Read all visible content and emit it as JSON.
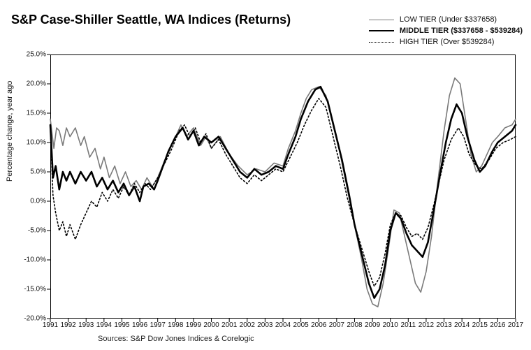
{
  "chart": {
    "type": "line",
    "title": "S&P Case-Shiller Seattle, WA Indices (Returns)",
    "title_fontsize": 18,
    "title_fontweight": "bold",
    "ylabel": "Percentage change, year ago",
    "label_fontsize": 11,
    "tick_fontsize": 10,
    "background_color": "#ffffff",
    "axis_color": "#000000",
    "xlim": [
      1991,
      2017
    ],
    "ylim": [
      -20,
      25
    ],
    "ytick_step": 5,
    "ytick_suffix": ".0%",
    "yticks": [
      "25.0%",
      "20.0%",
      "15.0%",
      "10.0%",
      "5.0%",
      "0.0%",
      "-5.0%",
      "-10.0%",
      "-15.0%",
      "-20.0%"
    ],
    "ytick_values": [
      25,
      20,
      15,
      10,
      5,
      0,
      -5,
      -10,
      -15,
      -20
    ],
    "xticks": [
      1991,
      1992,
      1993,
      1994,
      1995,
      1996,
      1997,
      1998,
      1999,
      2000,
      2001,
      2002,
      2003,
      2004,
      2005,
      2006,
      2007,
      2008,
      2009,
      2010,
      2011,
      2012,
      2013,
      2014,
      2015,
      2016,
      2017
    ],
    "legend": {
      "position": "top-right",
      "items": [
        {
          "label": "LOW TIER (Under $337658)",
          "color": "#7a7a7a",
          "width": 1.6,
          "dash": ""
        },
        {
          "label": "MIDDLE TIER ($337658 - $539284)",
          "color": "#000000",
          "width": 2.6,
          "dash": ""
        },
        {
          "label": "HIGH TIER (Over $539284)",
          "color": "#000000",
          "width": 1.6,
          "dash": "2,3"
        }
      ]
    },
    "series": [
      {
        "name": "LOW TIER",
        "color": "#7a7a7a",
        "width": 1.6,
        "dash": "",
        "points": [
          [
            1991.0,
            14.0
          ],
          [
            1991.2,
            9.0
          ],
          [
            1991.35,
            12.5
          ],
          [
            1991.5,
            12.0
          ],
          [
            1991.7,
            9.5
          ],
          [
            1991.9,
            12.5
          ],
          [
            1992.1,
            11.0
          ],
          [
            1992.4,
            12.5
          ],
          [
            1992.7,
            9.5
          ],
          [
            1992.9,
            11.0
          ],
          [
            1993.2,
            7.5
          ],
          [
            1993.5,
            9.0
          ],
          [
            1993.8,
            5.5
          ],
          [
            1994.0,
            7.5
          ],
          [
            1994.3,
            4.0
          ],
          [
            1994.6,
            6.0
          ],
          [
            1994.9,
            3.0
          ],
          [
            1995.2,
            5.0
          ],
          [
            1995.5,
            2.5
          ],
          [
            1995.8,
            3.5
          ],
          [
            1996.1,
            2.0
          ],
          [
            1996.4,
            4.0
          ],
          [
            1996.7,
            2.5
          ],
          [
            1997.0,
            4.0
          ],
          [
            1997.4,
            7.0
          ],
          [
            1997.7,
            9.0
          ],
          [
            1998.0,
            11.0
          ],
          [
            1998.3,
            13.0
          ],
          [
            1998.6,
            11.0
          ],
          [
            1999.0,
            12.5
          ],
          [
            1999.4,
            9.5
          ],
          [
            1999.7,
            11.0
          ],
          [
            2000.0,
            9.0
          ],
          [
            2000.5,
            11.0
          ],
          [
            2001.0,
            8.0
          ],
          [
            2001.5,
            6.0
          ],
          [
            2002.0,
            4.5
          ],
          [
            2002.5,
            5.5
          ],
          [
            2003.0,
            5.0
          ],
          [
            2003.5,
            6.5
          ],
          [
            2004.0,
            6.0
          ],
          [
            2004.3,
            9.0
          ],
          [
            2004.7,
            12.0
          ],
          [
            2005.0,
            15.0
          ],
          [
            2005.3,
            17.5
          ],
          [
            2005.6,
            19.0
          ],
          [
            2006.0,
            19.5
          ],
          [
            2006.4,
            18.0
          ],
          [
            2006.8,
            13.0
          ],
          [
            2007.2,
            8.0
          ],
          [
            2007.6,
            2.0
          ],
          [
            2008.0,
            -4.0
          ],
          [
            2008.4,
            -10.0
          ],
          [
            2008.7,
            -15.0
          ],
          [
            2009.0,
            -17.5
          ],
          [
            2009.3,
            -18.0
          ],
          [
            2009.6,
            -14.0
          ],
          [
            2009.9,
            -8.0
          ],
          [
            2010.2,
            -1.5
          ],
          [
            2010.5,
            -2.0
          ],
          [
            2010.8,
            -6.0
          ],
          [
            2011.1,
            -10.0
          ],
          [
            2011.4,
            -14.0
          ],
          [
            2011.7,
            -15.5
          ],
          [
            2012.0,
            -12.0
          ],
          [
            2012.3,
            -6.0
          ],
          [
            2012.6,
            2.0
          ],
          [
            2013.0,
            12.0
          ],
          [
            2013.3,
            18.0
          ],
          [
            2013.6,
            21.0
          ],
          [
            2013.9,
            20.0
          ],
          [
            2014.2,
            14.0
          ],
          [
            2014.5,
            8.0
          ],
          [
            2014.8,
            5.0
          ],
          [
            2015.1,
            6.0
          ],
          [
            2015.4,
            8.0
          ],
          [
            2015.7,
            10.0
          ],
          [
            2016.0,
            11.0
          ],
          [
            2016.4,
            12.5
          ],
          [
            2016.8,
            13.0
          ],
          [
            2017.0,
            14.0
          ]
        ]
      },
      {
        "name": "MIDDLE TIER",
        "color": "#000000",
        "width": 2.6,
        "dash": "",
        "points": [
          [
            1991.0,
            13.0
          ],
          [
            1991.15,
            4.0
          ],
          [
            1991.3,
            6.0
          ],
          [
            1991.5,
            2.0
          ],
          [
            1991.7,
            5.0
          ],
          [
            1991.9,
            3.5
          ],
          [
            1992.1,
            5.0
          ],
          [
            1992.4,
            3.0
          ],
          [
            1992.7,
            5.0
          ],
          [
            1993.0,
            3.5
          ],
          [
            1993.3,
            5.0
          ],
          [
            1993.6,
            2.5
          ],
          [
            1993.9,
            4.0
          ],
          [
            1994.2,
            2.0
          ],
          [
            1994.5,
            3.5
          ],
          [
            1994.8,
            1.5
          ],
          [
            1995.1,
            3.0
          ],
          [
            1995.4,
            1.0
          ],
          [
            1995.7,
            2.5
          ],
          [
            1996.0,
            0.0
          ],
          [
            1996.2,
            2.5
          ],
          [
            1996.5,
            3.0
          ],
          [
            1996.8,
            2.0
          ],
          [
            1997.0,
            3.5
          ],
          [
            1997.3,
            6.0
          ],
          [
            1997.6,
            8.5
          ],
          [
            1998.0,
            11.0
          ],
          [
            1998.4,
            12.5
          ],
          [
            1998.7,
            10.5
          ],
          [
            1999.0,
            12.0
          ],
          [
            1999.3,
            9.5
          ],
          [
            1999.6,
            11.0
          ],
          [
            2000.0,
            10.0
          ],
          [
            2000.4,
            11.0
          ],
          [
            2000.8,
            9.0
          ],
          [
            2001.2,
            7.0
          ],
          [
            2001.6,
            5.0
          ],
          [
            2002.0,
            4.0
          ],
          [
            2002.4,
            5.5
          ],
          [
            2002.8,
            4.5
          ],
          [
            2003.2,
            5.0
          ],
          [
            2003.6,
            6.0
          ],
          [
            2004.0,
            5.5
          ],
          [
            2004.3,
            8.0
          ],
          [
            2004.7,
            11.0
          ],
          [
            2005.0,
            14.0
          ],
          [
            2005.4,
            17.0
          ],
          [
            2005.8,
            19.0
          ],
          [
            2006.1,
            19.5
          ],
          [
            2006.5,
            17.0
          ],
          [
            2006.9,
            12.0
          ],
          [
            2007.3,
            7.0
          ],
          [
            2007.7,
            1.0
          ],
          [
            2008.0,
            -4.0
          ],
          [
            2008.4,
            -9.0
          ],
          [
            2008.8,
            -14.0
          ],
          [
            2009.1,
            -16.5
          ],
          [
            2009.4,
            -15.0
          ],
          [
            2009.7,
            -11.0
          ],
          [
            2010.0,
            -5.0
          ],
          [
            2010.3,
            -2.0
          ],
          [
            2010.6,
            -3.0
          ],
          [
            2010.9,
            -5.5
          ],
          [
            2011.2,
            -7.5
          ],
          [
            2011.5,
            -8.5
          ],
          [
            2011.8,
            -9.5
          ],
          [
            2012.1,
            -7.0
          ],
          [
            2012.4,
            -2.0
          ],
          [
            2012.8,
            5.0
          ],
          [
            2013.1,
            10.0
          ],
          [
            2013.4,
            14.0
          ],
          [
            2013.7,
            16.5
          ],
          [
            2014.0,
            15.0
          ],
          [
            2014.3,
            11.0
          ],
          [
            2014.7,
            7.0
          ],
          [
            2015.0,
            5.0
          ],
          [
            2015.3,
            6.0
          ],
          [
            2015.7,
            8.5
          ],
          [
            2016.0,
            10.0
          ],
          [
            2016.4,
            11.0
          ],
          [
            2016.8,
            12.0
          ],
          [
            2017.0,
            13.0
          ]
        ]
      },
      {
        "name": "HIGH TIER",
        "color": "#000000",
        "width": 1.6,
        "dash": "2,3",
        "points": [
          [
            1991.0,
            12.5
          ],
          [
            1991.15,
            1.0
          ],
          [
            1991.3,
            -2.0
          ],
          [
            1991.5,
            -5.0
          ],
          [
            1991.7,
            -3.5
          ],
          [
            1991.9,
            -6.0
          ],
          [
            1992.1,
            -4.0
          ],
          [
            1992.4,
            -6.5
          ],
          [
            1992.7,
            -4.0
          ],
          [
            1993.0,
            -2.0
          ],
          [
            1993.3,
            0.0
          ],
          [
            1993.6,
            -1.0
          ],
          [
            1993.9,
            1.5
          ],
          [
            1994.2,
            0.0
          ],
          [
            1994.5,
            2.0
          ],
          [
            1994.8,
            0.5
          ],
          [
            1995.1,
            2.5
          ],
          [
            1995.4,
            1.0
          ],
          [
            1995.7,
            3.0
          ],
          [
            1996.0,
            1.5
          ],
          [
            1996.3,
            3.0
          ],
          [
            1996.6,
            2.0
          ],
          [
            1997.0,
            4.0
          ],
          [
            1997.4,
            6.5
          ],
          [
            1997.8,
            9.0
          ],
          [
            1998.2,
            12.0
          ],
          [
            1998.5,
            13.0
          ],
          [
            1998.8,
            11.0
          ],
          [
            1999.1,
            12.5
          ],
          [
            1999.4,
            10.0
          ],
          [
            1999.7,
            11.5
          ],
          [
            2000.0,
            9.0
          ],
          [
            2000.4,
            10.5
          ],
          [
            2000.8,
            8.0
          ],
          [
            2001.2,
            6.0
          ],
          [
            2001.6,
            4.0
          ],
          [
            2002.0,
            3.0
          ],
          [
            2002.4,
            4.5
          ],
          [
            2002.8,
            3.5
          ],
          [
            2003.2,
            4.5
          ],
          [
            2003.6,
            5.5
          ],
          [
            2004.0,
            5.0
          ],
          [
            2004.4,
            7.5
          ],
          [
            2004.8,
            10.0
          ],
          [
            2005.2,
            13.0
          ],
          [
            2005.6,
            15.5
          ],
          [
            2006.0,
            17.5
          ],
          [
            2006.4,
            16.0
          ],
          [
            2006.8,
            11.0
          ],
          [
            2007.2,
            6.0
          ],
          [
            2007.6,
            0.5
          ],
          [
            2008.0,
            -4.0
          ],
          [
            2008.4,
            -8.0
          ],
          [
            2008.8,
            -12.0
          ],
          [
            2009.1,
            -14.5
          ],
          [
            2009.4,
            -13.0
          ],
          [
            2009.7,
            -9.0
          ],
          [
            2010.0,
            -4.0
          ],
          [
            2010.3,
            -2.0
          ],
          [
            2010.6,
            -2.5
          ],
          [
            2010.9,
            -4.5
          ],
          [
            2011.2,
            -6.0
          ],
          [
            2011.5,
            -5.5
          ],
          [
            2011.8,
            -6.5
          ],
          [
            2012.1,
            -4.5
          ],
          [
            2012.4,
            -1.0
          ],
          [
            2012.7,
            3.0
          ],
          [
            2013.0,
            7.0
          ],
          [
            2013.4,
            10.5
          ],
          [
            2013.8,
            12.5
          ],
          [
            2014.1,
            11.0
          ],
          [
            2014.4,
            8.0
          ],
          [
            2014.8,
            6.0
          ],
          [
            2015.1,
            5.5
          ],
          [
            2015.5,
            7.0
          ],
          [
            2015.9,
            9.0
          ],
          [
            2016.3,
            10.0
          ],
          [
            2016.7,
            10.5
          ],
          [
            2017.0,
            11.0
          ]
        ]
      }
    ],
    "source": "Sources: S&P Dow Jones Indices & Corelogic"
  }
}
